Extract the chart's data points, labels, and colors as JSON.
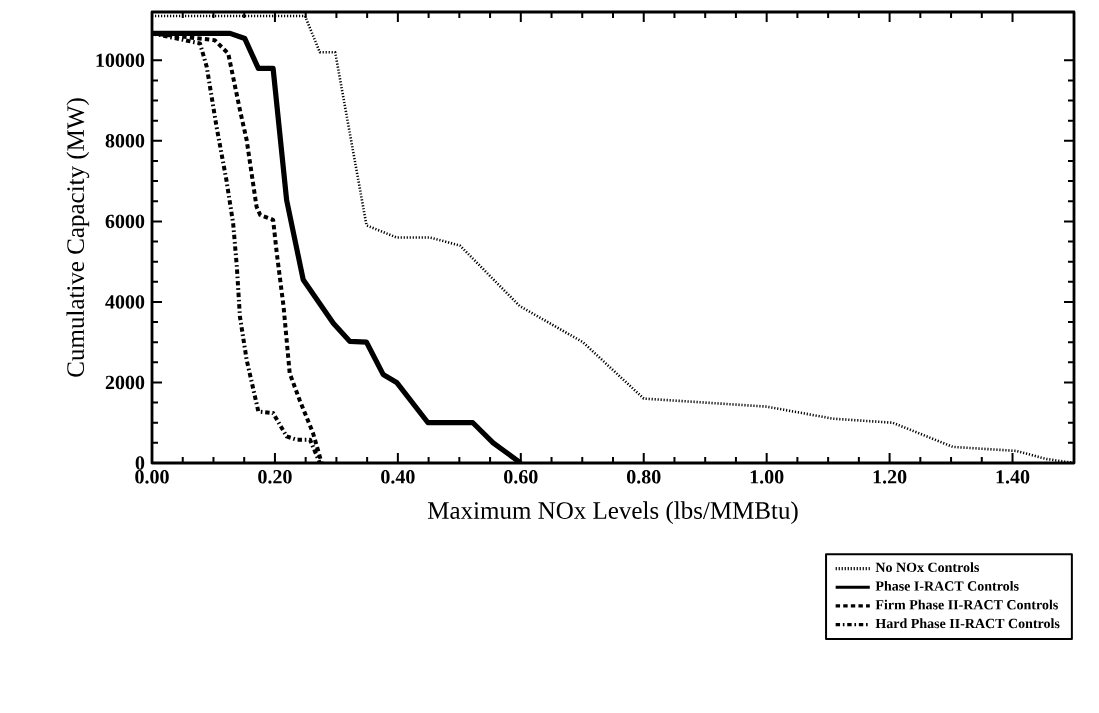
{
  "chart_data": {
    "type": "line",
    "xlabel": "Maximum  NOx Levels (lbs/MMBtu)",
    "ylabel": "Cumulative Capacity (MW)",
    "xlim": [
      0,
      1.5
    ],
    "ylim": [
      0,
      11200
    ],
    "xticks": [
      {
        "value": 0,
        "label": "0.00"
      },
      {
        "value": 0.2,
        "label": "0.20"
      },
      {
        "value": 0.4,
        "label": "0.40"
      },
      {
        "value": 0.6,
        "label": "0.60"
      },
      {
        "value": 0.8,
        "label": "0.80"
      },
      {
        "value": 1.0,
        "label": "1.00"
      },
      {
        "value": 1.2,
        "label": "1.20"
      },
      {
        "value": 1.4,
        "label": "1.40"
      }
    ],
    "yticks": [
      0,
      2000,
      4000,
      6000,
      8000,
      10000
    ],
    "legend": "bottom right",
    "grid": false,
    "series": [
      {
        "name": "No NOx Controls",
        "color": "#000000",
        "line_style": "dotted",
        "x": [
          0,
          0.249,
          0.273,
          0.298,
          0.349,
          0.398,
          0.452,
          0.501,
          0.598,
          0.701,
          0.8,
          1.0,
          1.108,
          1.205,
          1.303,
          1.406,
          1.455,
          1.5
        ],
        "values": [
          11100,
          11100,
          10200,
          10200,
          5900,
          5600,
          5600,
          5400,
          3900,
          3000,
          1600,
          1400,
          1100,
          1000,
          400,
          300,
          100,
          0
        ]
      },
      {
        "name": "Phase I-RACT Controls",
        "color": "#000000",
        "line_style": "solid",
        "x": [
          0,
          0.127,
          0.151,
          0.173,
          0.197,
          0.219,
          0.246,
          0.295,
          0.322,
          0.349,
          0.376,
          0.398,
          0.449,
          0.522,
          0.555,
          0.6
        ],
        "values": [
          10670,
          10670,
          10540,
          9800,
          9800,
          6530,
          4550,
          3470,
          3020,
          3000,
          2200,
          2000,
          1000,
          1000,
          500,
          0
        ]
      },
      {
        "name": "Firm Phase II-RACT Controls",
        "color": "#000000",
        "line_style": "dashed",
        "x": [
          0,
          0.102,
          0.124,
          0.143,
          0.154,
          0.17,
          0.176,
          0.197,
          0.203,
          0.214,
          0.224,
          0.24,
          0.262,
          0.276
        ],
        "values": [
          10670,
          10500,
          10170,
          8770,
          8020,
          6370,
          6160,
          6040,
          5210,
          3890,
          2230,
          1570,
          740,
          0
        ]
      },
      {
        "name": "Hard Phase II-RACT Controls",
        "color": "#000000",
        "line_style": "dashdot",
        "x": [
          0,
          0.078,
          0.089,
          0.105,
          0.121,
          0.132,
          0.138,
          0.143,
          0.154,
          0.173,
          0.197,
          0.219,
          0.235,
          0.257,
          0.273
        ],
        "values": [
          10670,
          10420,
          9840,
          8350,
          7030,
          5950,
          4880,
          3640,
          2560,
          1280,
          1240,
          660,
          580,
          580,
          0
        ]
      }
    ]
  }
}
